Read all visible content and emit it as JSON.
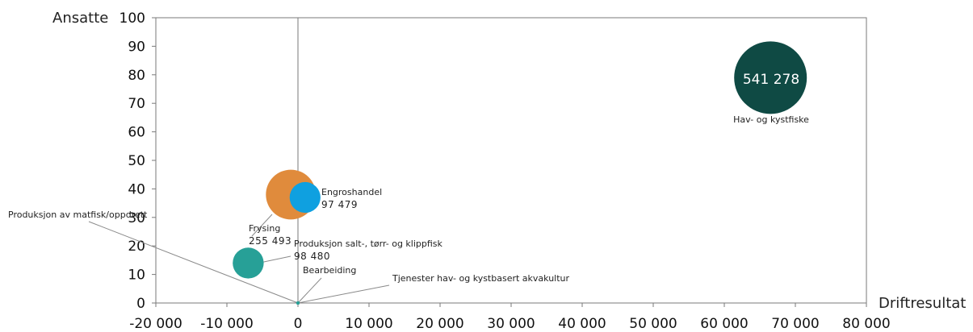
{
  "chart_data": {
    "type": "bubble",
    "xlabel": "Driftresultat",
    "ylabel": "Ansatte",
    "xlim": [
      -20000,
      80000
    ],
    "ylim": [
      0,
      100
    ],
    "x_ticks": [
      -20000,
      -10000,
      0,
      10000,
      20000,
      30000,
      40000,
      50000,
      60000,
      70000,
      80000
    ],
    "x_tick_labels": [
      "-20 000",
      "-10 000",
      "0",
      "10 000",
      "20 000",
      "30 000",
      "40 000",
      "50 000",
      "60 000",
      "70 000",
      "80 000"
    ],
    "y_ticks": [
      0,
      10,
      20,
      30,
      40,
      50,
      60,
      70,
      80,
      90,
      100
    ],
    "y_tick_labels": [
      "0",
      "10",
      "20",
      "30",
      "40",
      "50",
      "60",
      "70",
      "80",
      "90",
      "100"
    ],
    "grid": false,
    "points": [
      {
        "id": "hav",
        "name": "Hav- og kystfiske",
        "x": 66500,
        "y": 79,
        "size_value": 541278,
        "size_label": "541 278",
        "color": "#0f4a44"
      },
      {
        "id": "frysing",
        "name": "Frysing",
        "x": -1000,
        "y": 38,
        "size_value": 255493,
        "size_label": "255 493",
        "color": "#e08b3c"
      },
      {
        "id": "engros",
        "name": "Engroshandel",
        "x": 1000,
        "y": 37,
        "size_value": 97479,
        "size_label": "97 479",
        "color": "#0fa0e0"
      },
      {
        "id": "salt",
        "name": "Produksjon salt-, tørr- og klippfisk",
        "x": -7000,
        "y": 14,
        "size_value": 98480,
        "size_label": "98 480",
        "color": "#27a097"
      },
      {
        "id": "matfisk",
        "name": "Produksjon av matfisk/oppdrett",
        "x": 0,
        "y": 0,
        "size_value": null,
        "size_label": "",
        "color": "#27a097"
      },
      {
        "id": "bearbeiding",
        "name": "Bearbeiding",
        "x": 0,
        "y": 0,
        "size_value": null,
        "size_label": "",
        "color": "#27a097"
      },
      {
        "id": "tjenester",
        "name": "Tjenester hav- og kystbasert akvakultur",
        "x": 0,
        "y": 0,
        "size_value": null,
        "size_label": "",
        "color": "#27a097"
      }
    ]
  }
}
